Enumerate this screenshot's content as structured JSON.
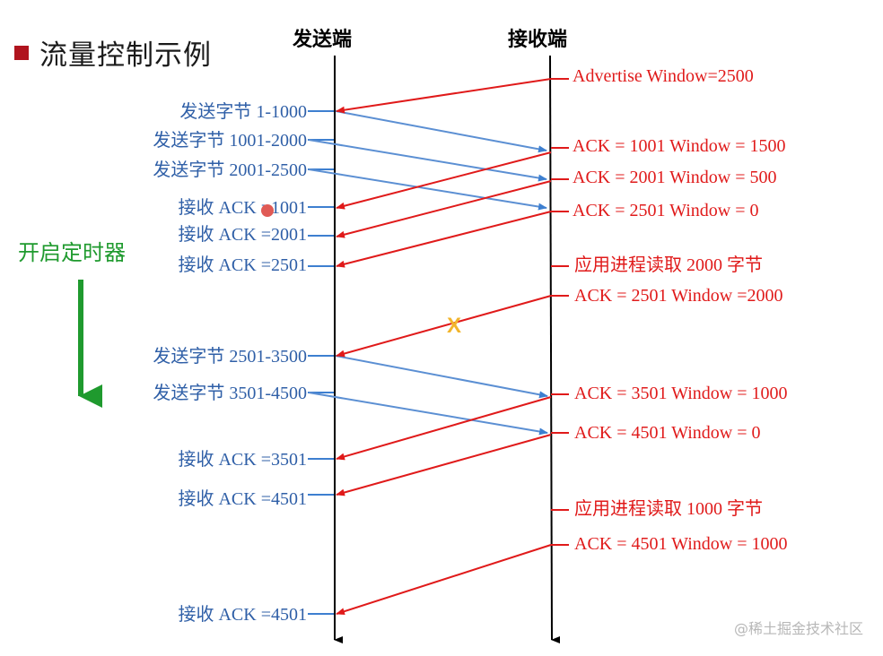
{
  "title": "流量控制示例",
  "sender_header": "发送端",
  "receiver_header": "接收端",
  "timer_label": "开启定时器",
  "watermark": "@稀土掘金技术社区",
  "lost_marker": "X",
  "colors": {
    "sender": "#2f5fa7",
    "receiver": "#e01a1a",
    "timeline": "#000000",
    "timer": "#1f9a2e",
    "lost": "#f2b52c",
    "dot": "#e05a55"
  },
  "sender_labels": [
    "发送字节 1-1000",
    "发送字节 1001-2000",
    "发送字节 2001-2500",
    "接收 ACK =1001",
    "接收 ACK =2001",
    "接收 ACK =2501",
    "发送字节 2501-3500",
    "发送字节 3501-4500",
    "接收 ACK =3501",
    "接收 ACK =4501",
    "接收 ACK =4501"
  ],
  "receiver_labels": [
    "Advertise Window=2500",
    "ACK = 1001  Window = 1500",
    "ACK = 2001  Window = 500",
    "ACK = 2501  Window = 0",
    "应用进程读取 2000 字节",
    "ACK = 2501  Window =2000",
    "ACK = 3501  Window = 1000",
    "ACK = 4501  Window = 0",
    "应用进程读取 1000 字节",
    "ACK = 4501  Window = 1000"
  ]
}
